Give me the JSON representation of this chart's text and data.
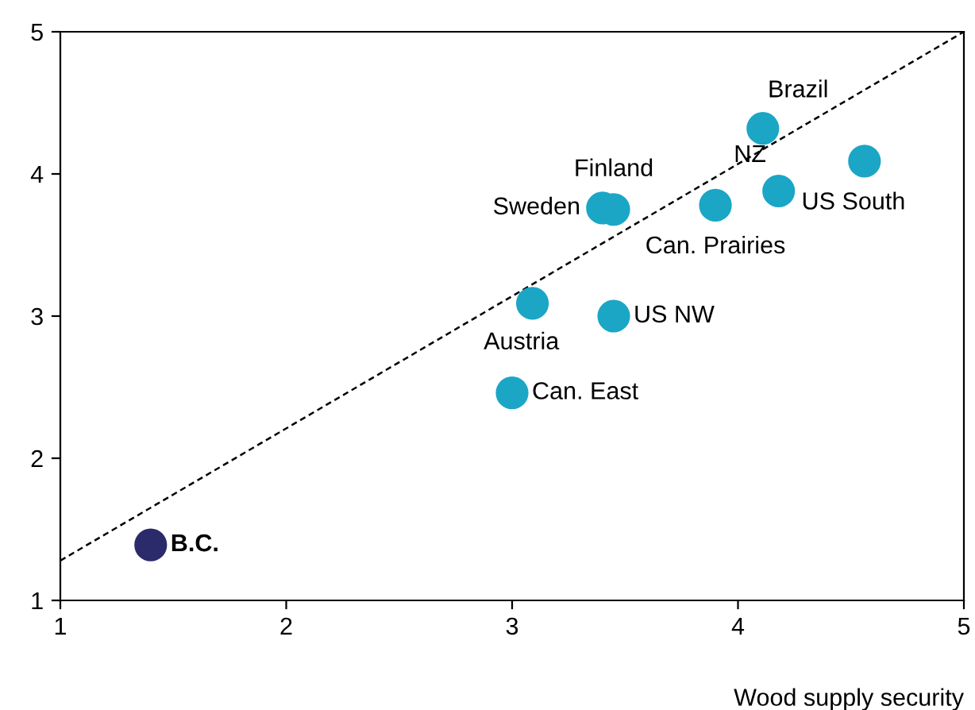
{
  "chart_data": {
    "type": "scatter",
    "xlabel": "Wood supply security",
    "xlim": [
      1,
      5
    ],
    "ylim": [
      1,
      5
    ],
    "xticks": [
      1,
      2,
      3,
      4,
      5
    ],
    "yticks": [
      1,
      2,
      3,
      4,
      5
    ],
    "grid": false,
    "legend": false,
    "series": [
      {
        "marker": "circle",
        "x": [
          1.4,
          3.0,
          3.09,
          3.45,
          3.4,
          3.45,
          3.9,
          4.18,
          4.11,
          4.56
        ],
        "values": [
          1.39,
          2.46,
          3.09,
          3.0,
          3.76,
          3.75,
          3.78,
          3.88,
          4.32,
          4.09
        ],
        "colors": [
          "#2b2a6b",
          "#1ba6c6",
          "#1ba6c6",
          "#1ba6c6",
          "#1ba6c6",
          "#1ba6c6",
          "#1ba6c6",
          "#1ba6c6",
          "#1ba6c6",
          "#1ba6c6"
        ]
      },
      {
        "type": "line",
        "x": [
          1,
          5
        ],
        "values": [
          1.28,
          5
        ],
        "color": "#000000",
        "line_style": "dashed",
        "marker": "none"
      }
    ],
    "annotations": [
      {
        "text": "B.C.",
        "x": 1.4,
        "y": 1.39
      },
      {
        "text": "Can. East",
        "x": 3.0,
        "y": 2.46
      },
      {
        "text": "Austria",
        "x": 3.09,
        "y": 3.09
      },
      {
        "text": "US NW",
        "x": 3.45,
        "y": 3.0
      },
      {
        "text": "Sweden",
        "x": 3.4,
        "y": 3.76
      },
      {
        "text": "Finland",
        "x": 3.45,
        "y": 3.75
      },
      {
        "text": "Can. Prairies",
        "x": 3.9,
        "y": 3.78
      },
      {
        "text": "NZ",
        "x": 4.18,
        "y": 3.88
      },
      {
        "text": "Brazil",
        "x": 4.11,
        "y": 4.32
      },
      {
        "text": "US South",
        "x": 4.56,
        "y": 4.09
      }
    ]
  }
}
